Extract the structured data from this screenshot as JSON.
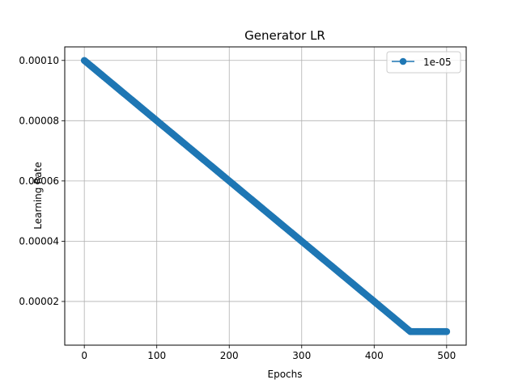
{
  "chart_data": {
    "type": "line",
    "title": "Generator LR",
    "xlabel": "Epochs",
    "ylabel": "Learning Rate",
    "xlim": [
      -27,
      527
    ],
    "ylim": [
      5.5e-06,
      0.0001045
    ],
    "xticks": [
      0,
      100,
      200,
      300,
      400,
      500
    ],
    "xtick_labels": [
      "0",
      "100",
      "200",
      "300",
      "400",
      "500"
    ],
    "yticks": [
      2e-05,
      4e-05,
      6e-05,
      8e-05,
      0.0001
    ],
    "ytick_labels": [
      "0.00002",
      "0.00004",
      "0.00006",
      "0.00008",
      "0.00010"
    ],
    "grid": true,
    "legend_position": "top-right",
    "series": [
      {
        "name": "1e-05",
        "color": "#1f77b4",
        "marker": "circle",
        "schedule": "linear decay from 0.0001 at epoch 0 to 0.00001 at epoch 450, then constant 0.00001 through epoch 500",
        "x": [
          0,
          450,
          500
        ],
        "y": [
          0.0001,
          1e-05,
          1e-05
        ]
      }
    ]
  }
}
